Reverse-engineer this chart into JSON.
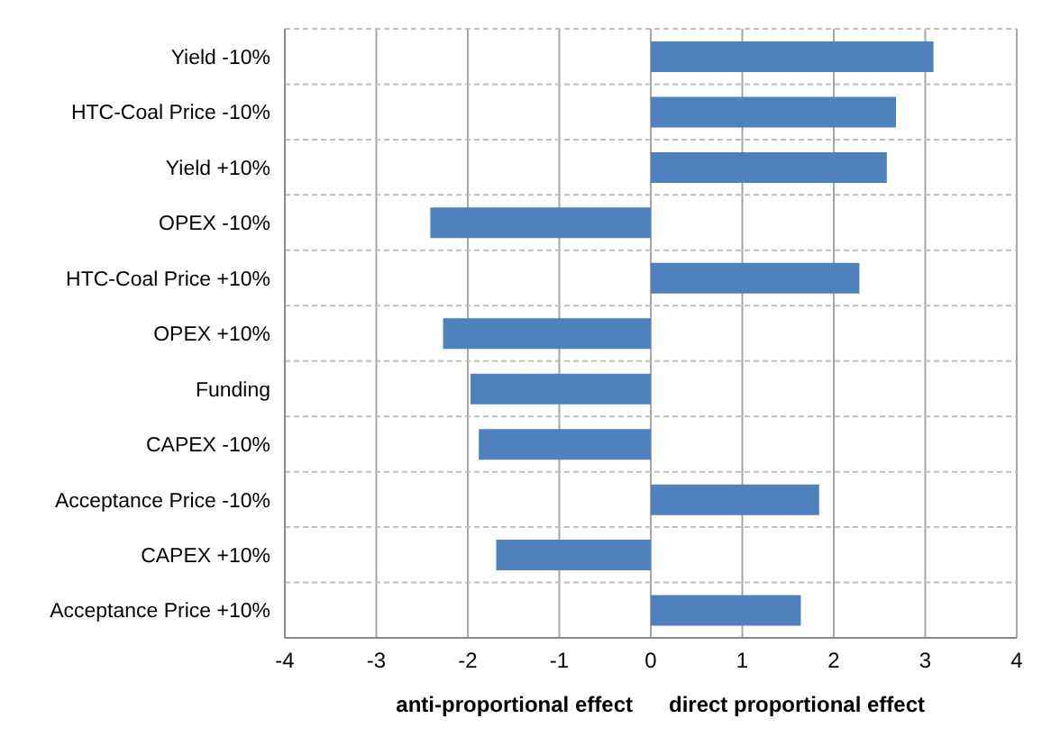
{
  "chart_data": {
    "type": "bar",
    "orientation": "horizontal",
    "categories": [
      "Yield -10%",
      "HTC-Coal Price -10%",
      "Yield +10%",
      "OPEX -10%",
      "HTC-Coal Price +10%",
      "OPEX +10%",
      "Funding",
      "CAPEX -10%",
      "Acceptance Price -10%",
      "CAPEX +10%",
      "Acceptance Price +10%"
    ],
    "values": [
      3.09,
      2.68,
      2.58,
      -2.41,
      2.28,
      -2.27,
      -1.97,
      -1.88,
      1.84,
      -1.69,
      1.64
    ],
    "color": "#4f81bd",
    "xlim": [
      -4,
      4
    ],
    "xticks": [
      -4,
      -3,
      -2,
      -1,
      0,
      1,
      2,
      3,
      4
    ],
    "grid": true,
    "annotations": [
      "anti-proportional effect",
      "direct proportional effect"
    ]
  }
}
